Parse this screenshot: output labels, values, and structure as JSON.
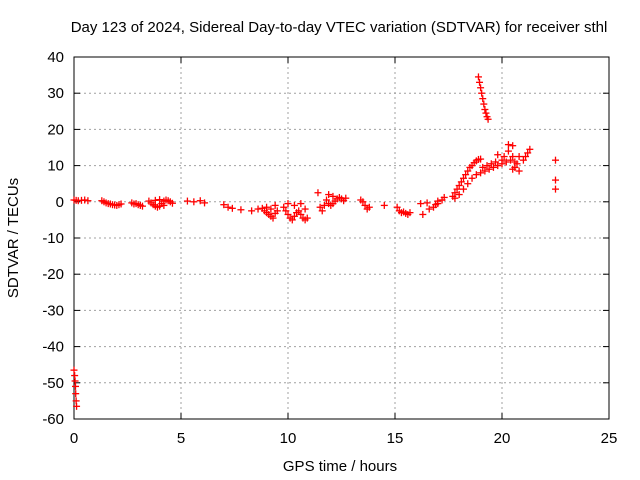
{
  "chart_data": {
    "type": "scatter",
    "title": "Day 123 of 2024, Sidereal Day-to-day VTEC variation (SDTVAR) for receiver sthl",
    "xlabel": "GPS time / hours",
    "ylabel": "SDTVAR / TECUs",
    "xlim": [
      0,
      25
    ],
    "ylim": [
      -60,
      40
    ],
    "xticks": [
      0,
      5,
      10,
      15,
      20,
      25
    ],
    "yticks": [
      40,
      30,
      20,
      10,
      0,
      -10,
      -20,
      -30,
      -40,
      -50,
      -60
    ],
    "grid": true,
    "marker": "+",
    "marker_color": "#ff0000",
    "series": [
      {
        "name": "SDTVAR",
        "points": [
          [
            0.0,
            -46.5
          ],
          [
            0.03,
            -48.0
          ],
          [
            0.05,
            -49.5
          ],
          [
            0.07,
            -51.0
          ],
          [
            0.08,
            -53.0
          ],
          [
            0.1,
            -55.0
          ],
          [
            0.12,
            -56.5
          ],
          [
            0.0,
            0.5
          ],
          [
            0.1,
            0.4
          ],
          [
            0.2,
            0.3
          ],
          [
            0.35,
            0.4
          ],
          [
            0.5,
            0.5
          ],
          [
            0.65,
            0.3
          ],
          [
            1.3,
            0.3
          ],
          [
            1.4,
            0.0
          ],
          [
            1.5,
            -0.3
          ],
          [
            1.6,
            -0.5
          ],
          [
            1.7,
            -0.6
          ],
          [
            1.8,
            -0.8
          ],
          [
            1.9,
            -0.9
          ],
          [
            2.0,
            -1.0
          ],
          [
            2.1,
            -0.8
          ],
          [
            2.2,
            -0.6
          ],
          [
            2.7,
            -0.3
          ],
          [
            2.8,
            -0.6
          ],
          [
            2.9,
            -0.5
          ],
          [
            3.0,
            -0.8
          ],
          [
            3.1,
            -1.0
          ],
          [
            3.2,
            -1.2
          ],
          [
            3.5,
            0.2
          ],
          [
            3.6,
            -0.3
          ],
          [
            3.7,
            -0.8
          ],
          [
            3.8,
            -1.2
          ],
          [
            3.9,
            -1.5
          ],
          [
            4.0,
            -1.2
          ],
          [
            4.1,
            -0.5
          ],
          [
            4.2,
            0.2
          ],
          [
            4.3,
            0.5
          ],
          [
            4.4,
            0.3
          ],
          [
            4.5,
            0.0
          ],
          [
            4.6,
            -0.4
          ],
          [
            3.8,
            0.4
          ],
          [
            4.0,
            0.6
          ],
          [
            4.2,
            -1.0
          ],
          [
            5.3,
            0.2
          ],
          [
            5.6,
            0.0
          ],
          [
            5.9,
            0.3
          ],
          [
            6.1,
            -0.3
          ],
          [
            7.0,
            -0.8
          ],
          [
            7.2,
            -1.5
          ],
          [
            7.4,
            -1.8
          ],
          [
            7.8,
            -2.2
          ],
          [
            8.3,
            -2.5
          ],
          [
            8.6,
            -2.0
          ],
          [
            8.8,
            -1.8
          ],
          [
            8.9,
            -2.5
          ],
          [
            9.0,
            -3.0
          ],
          [
            9.1,
            -3.5
          ],
          [
            9.2,
            -4.0
          ],
          [
            9.3,
            -4.5
          ],
          [
            9.4,
            -3.2
          ],
          [
            9.5,
            -2.5
          ],
          [
            9.0,
            -1.5
          ],
          [
            9.2,
            -2.0
          ],
          [
            9.4,
            -1.0
          ],
          [
            9.8,
            -1.5
          ],
          [
            9.9,
            -2.5
          ],
          [
            10.0,
            -3.5
          ],
          [
            10.1,
            -4.5
          ],
          [
            10.2,
            -5.0
          ],
          [
            10.3,
            -4.0
          ],
          [
            10.4,
            -3.0
          ],
          [
            10.5,
            -2.5
          ],
          [
            10.6,
            -3.5
          ],
          [
            10.7,
            -4.5
          ],
          [
            10.8,
            -5.0
          ],
          [
            10.9,
            -4.5
          ],
          [
            10.0,
            -0.5
          ],
          [
            10.3,
            -1.0
          ],
          [
            10.6,
            -0.5
          ],
          [
            10.8,
            -2.0
          ],
          [
            11.4,
            2.5
          ],
          [
            11.5,
            -1.5
          ],
          [
            11.6,
            -2.5
          ],
          [
            11.7,
            -1.0
          ],
          [
            11.8,
            0.5
          ],
          [
            11.9,
            -0.5
          ],
          [
            12.0,
            -1.0
          ],
          [
            12.1,
            -0.5
          ],
          [
            12.2,
            0.2
          ],
          [
            12.3,
            0.8
          ],
          [
            12.4,
            1.2
          ],
          [
            12.5,
            0.8
          ],
          [
            12.6,
            0.3
          ],
          [
            12.7,
            1.0
          ],
          [
            12.1,
            1.5
          ],
          [
            11.9,
            2.0
          ],
          [
            13.4,
            0.5
          ],
          [
            13.5,
            0.0
          ],
          [
            13.6,
            -1.0
          ],
          [
            13.7,
            -2.0
          ],
          [
            13.8,
            -1.5
          ],
          [
            14.5,
            -1.0
          ],
          [
            15.1,
            -1.5
          ],
          [
            15.2,
            -2.5
          ],
          [
            15.3,
            -3.0
          ],
          [
            15.4,
            -2.8
          ],
          [
            15.5,
            -3.2
          ],
          [
            15.6,
            -3.5
          ],
          [
            15.7,
            -3.0
          ],
          [
            16.2,
            -0.5
          ],
          [
            16.3,
            -3.5
          ],
          [
            16.5,
            -0.3
          ],
          [
            16.6,
            -2.0
          ],
          [
            16.8,
            -1.5
          ],
          [
            16.9,
            -0.8
          ],
          [
            17.0,
            -0.5
          ],
          [
            17.2,
            0.5
          ],
          [
            17.3,
            1.2
          ],
          [
            17.0,
            0.2
          ],
          [
            17.7,
            1.5
          ],
          [
            17.8,
            2.5
          ],
          [
            17.9,
            3.5
          ],
          [
            18.0,
            4.5
          ],
          [
            18.1,
            5.5
          ],
          [
            18.2,
            6.5
          ],
          [
            18.3,
            7.5
          ],
          [
            18.4,
            8.5
          ],
          [
            18.5,
            9.5
          ],
          [
            18.6,
            10.0
          ],
          [
            18.7,
            10.8
          ],
          [
            18.8,
            11.3
          ],
          [
            18.9,
            11.7
          ],
          [
            19.0,
            11.8
          ],
          [
            17.8,
            1.0
          ],
          [
            18.0,
            2.0
          ],
          [
            18.2,
            3.5
          ],
          [
            18.4,
            5.0
          ],
          [
            18.6,
            6.5
          ],
          [
            18.8,
            7.5
          ],
          [
            19.0,
            8.0
          ],
          [
            19.2,
            8.5
          ],
          [
            19.4,
            9.0
          ],
          [
            19.6,
            9.5
          ],
          [
            19.8,
            10.0
          ],
          [
            20.0,
            10.5
          ],
          [
            20.2,
            11.0
          ],
          [
            20.4,
            11.5
          ],
          [
            19.1,
            9.5
          ],
          [
            19.3,
            10.0
          ],
          [
            19.5,
            10.5
          ],
          [
            19.7,
            11.0
          ],
          [
            19.8,
            13.0
          ],
          [
            20.0,
            11.5
          ],
          [
            20.1,
            12.5
          ],
          [
            20.3,
            14.0
          ],
          [
            20.5,
            15.5
          ],
          [
            20.3,
            15.8
          ],
          [
            20.5,
            12.5
          ],
          [
            20.6,
            11.0
          ],
          [
            20.7,
            10.5
          ],
          [
            20.8,
            12.5
          ],
          [
            20.5,
            9.0
          ],
          [
            20.6,
            9.5
          ],
          [
            20.8,
            8.5
          ],
          [
            21.0,
            11.5
          ],
          [
            21.1,
            12.5
          ],
          [
            21.2,
            13.5
          ],
          [
            21.3,
            14.5
          ],
          [
            18.9,
            34.5
          ],
          [
            18.95,
            33.0
          ],
          [
            19.0,
            31.5
          ],
          [
            19.05,
            30.0
          ],
          [
            19.1,
            28.5
          ],
          [
            19.15,
            27.0
          ],
          [
            19.2,
            25.5
          ],
          [
            19.25,
            24.5
          ],
          [
            19.3,
            23.5
          ],
          [
            19.35,
            22.8
          ],
          [
            22.5,
            11.5
          ],
          [
            22.5,
            6.0
          ],
          [
            22.5,
            3.5
          ]
        ]
      }
    ]
  }
}
